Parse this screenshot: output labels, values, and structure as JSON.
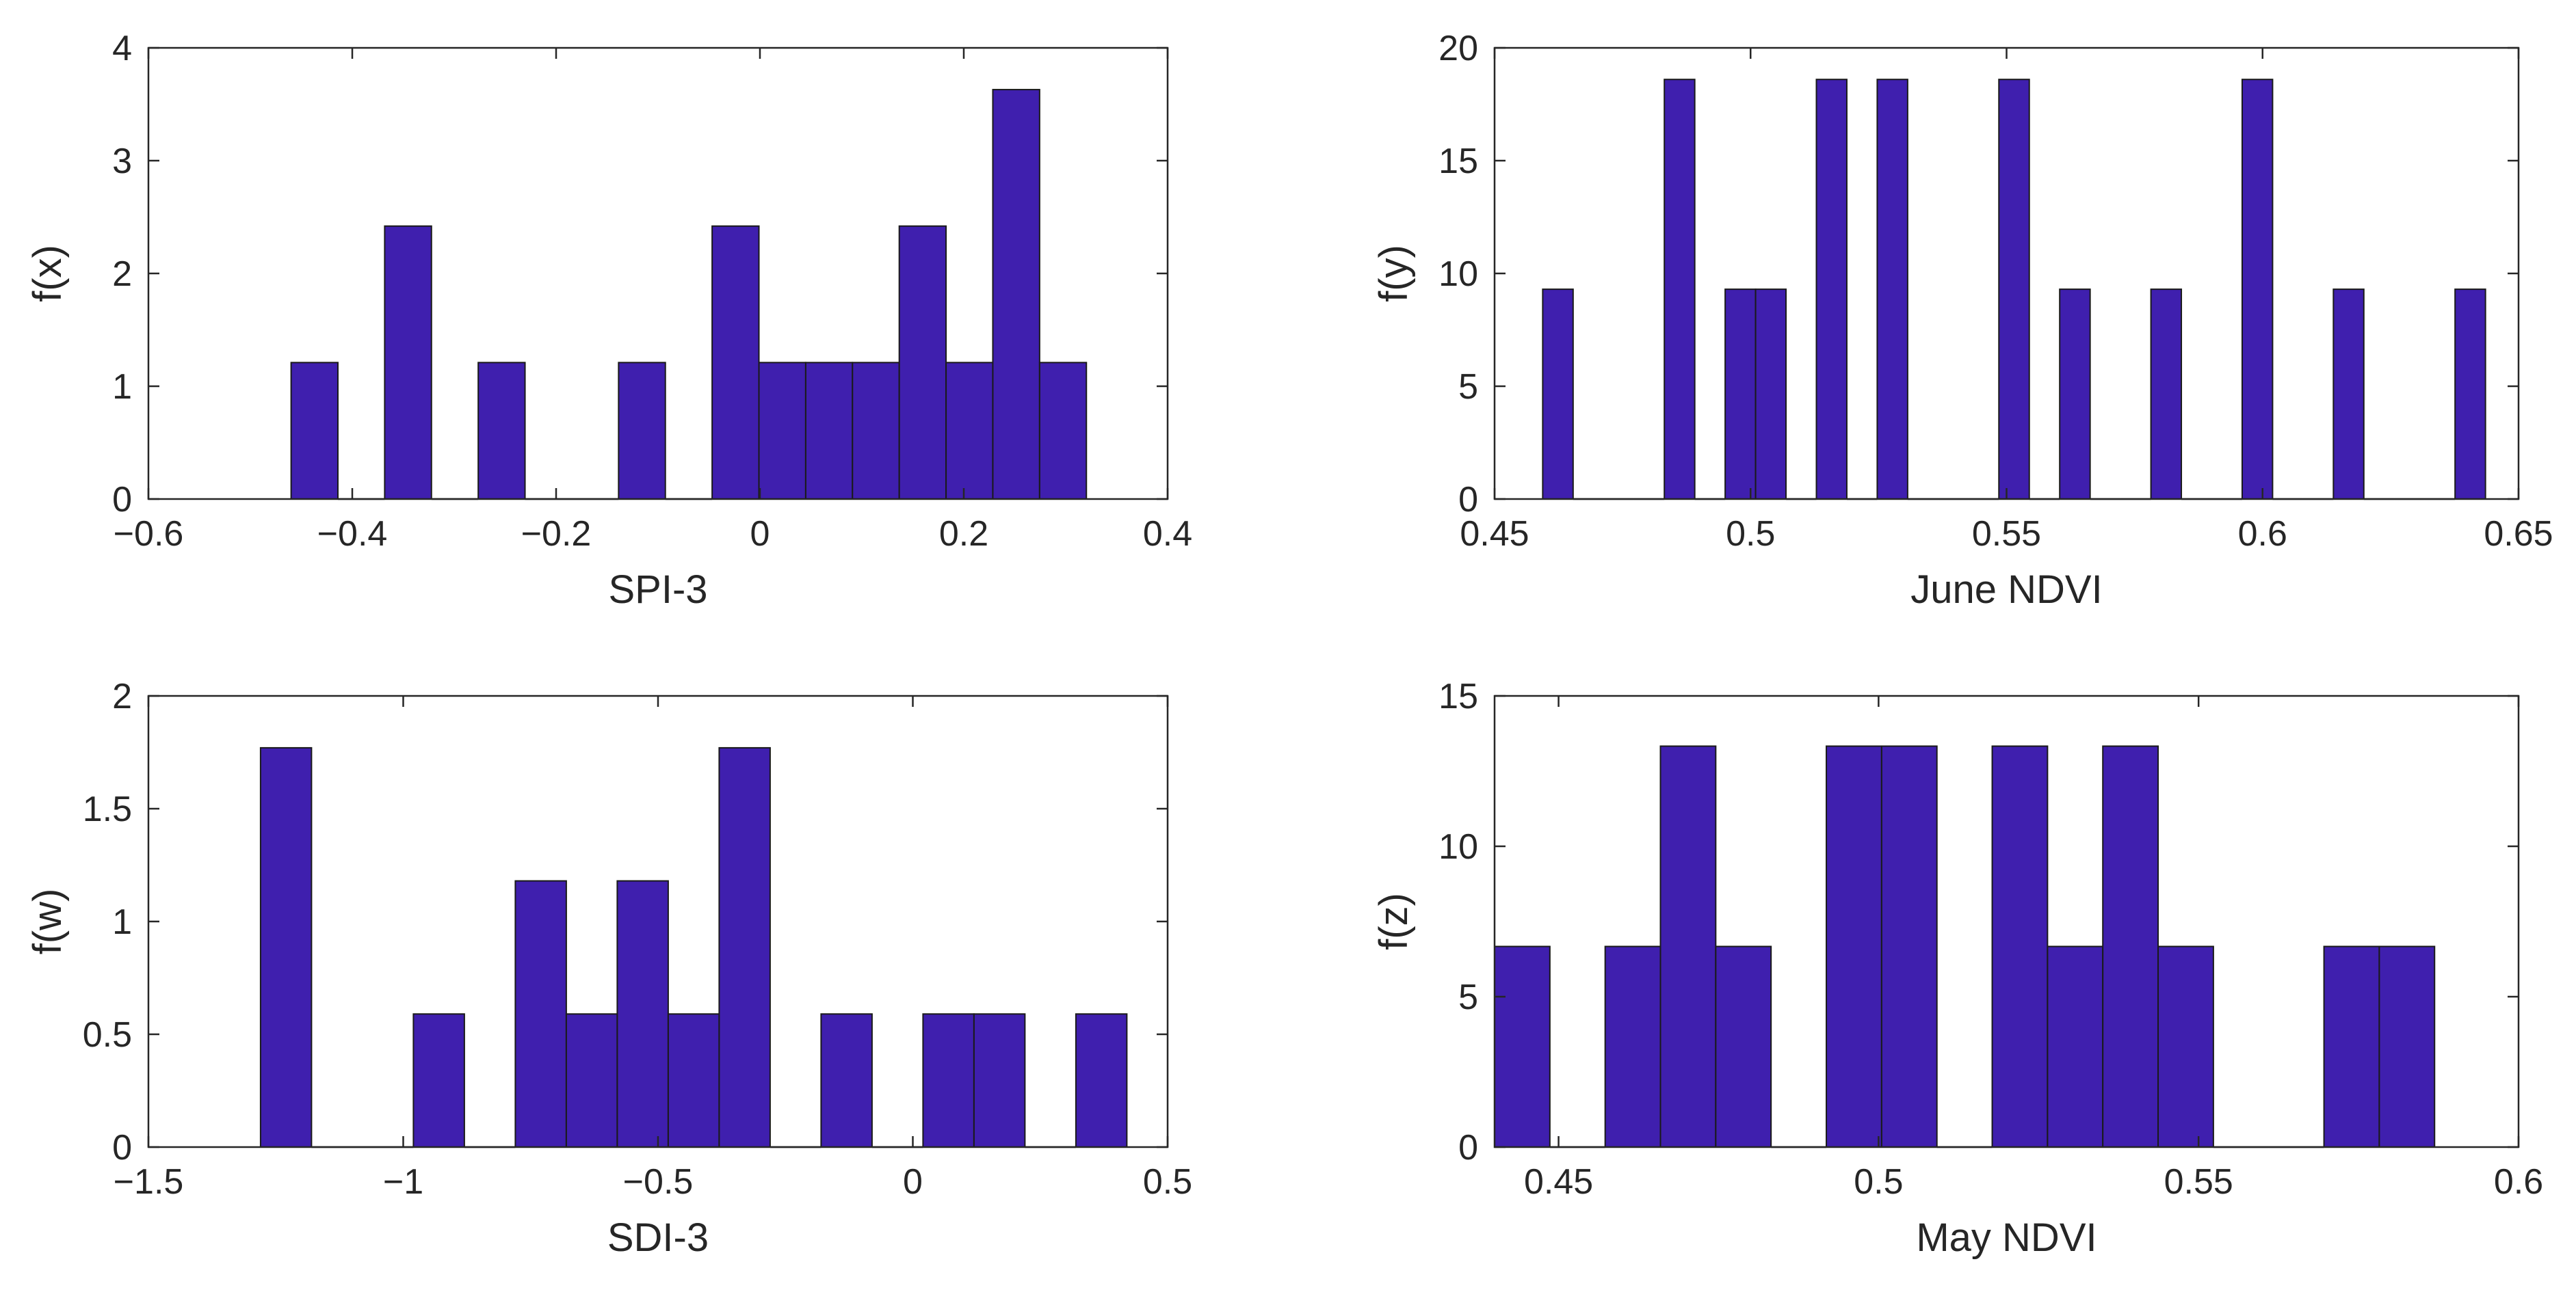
{
  "colors": {
    "bar_fill": "#3f1fae",
    "axis": "#262626"
  },
  "chart_data": [
    {
      "id": "spi3",
      "type": "bar",
      "xlabel": "SPI-3",
      "ylabel": "f(x)",
      "xlim": [
        -0.6,
        0.4
      ],
      "ylim": [
        0,
        4
      ],
      "xticks": [
        -0.6,
        -0.4,
        -0.2,
        0,
        0.2,
        0.4
      ],
      "xtick_labels": [
        "−0.6",
        "−0.4",
        "−0.2",
        "0",
        "0.2",
        "0.4"
      ],
      "yticks": [
        0,
        1,
        2,
        3,
        4
      ],
      "ytick_labels": [
        "0",
        "1",
        "2",
        "3",
        "4"
      ],
      "bin_start": -0.46,
      "bin_width": 0.0459,
      "values": [
        1.21,
        0,
        2.42,
        0,
        1.21,
        0,
        0,
        1.21,
        0,
        2.42,
        1.21,
        1.21,
        1.21,
        2.42,
        1.21,
        3.63,
        1.21
      ]
    },
    {
      "id": "june_ndvi",
      "type": "bar",
      "xlabel": "June NDVI",
      "ylabel": "f(y)",
      "xlim": [
        0.45,
        0.65
      ],
      "ylim": [
        0,
        20
      ],
      "xticks": [
        0.45,
        0.5,
        0.55,
        0.6,
        0.65
      ],
      "xtick_labels": [
        "0.45",
        "0.5",
        "0.55",
        "0.6",
        "0.65"
      ],
      "yticks": [
        0,
        5,
        10,
        15,
        20
      ],
      "ytick_labels": [
        "0",
        "5",
        "10",
        "15",
        "20"
      ],
      "bin_start": 0.4594,
      "bin_width": 0.00594,
      "values": [
        9.3,
        0,
        0,
        0,
        18.6,
        0,
        9.3,
        9.3,
        0,
        18.6,
        0,
        18.6,
        0,
        0,
        0,
        18.6,
        0,
        9.3,
        0,
        0,
        9.3,
        0,
        0,
        18.6,
        0,
        0,
        9.3,
        0,
        0,
        0,
        9.3
      ]
    },
    {
      "id": "sdi3",
      "type": "bar",
      "xlabel": "SDI-3",
      "ylabel": "f(w)",
      "xlim": [
        -1.5,
        0.5
      ],
      "ylim": [
        0,
        2
      ],
      "xticks": [
        -1.5,
        -1,
        -0.5,
        0,
        0.5
      ],
      "xtick_labels": [
        "−1.5",
        "−1",
        "−0.5",
        "0",
        "0.5"
      ],
      "yticks": [
        0,
        0.5,
        1,
        1.5,
        2
      ],
      "ytick_labels": [
        "0",
        "0.5",
        "1",
        "1.5",
        "2"
      ],
      "bin_start": -1.28,
      "bin_width": 0.1,
      "values": [
        1.77,
        0,
        0,
        0.59,
        0,
        1.18,
        0.59,
        1.18,
        0.59,
        1.77,
        0,
        0.59,
        0,
        0.59,
        0.59,
        0,
        0.59
      ]
    },
    {
      "id": "may_ndvi",
      "type": "bar",
      "xlabel": "May NDVI",
      "ylabel": "f(z)",
      "xlim": [
        0.44,
        0.6
      ],
      "ylim": [
        0,
        15
      ],
      "xticks": [
        0.45,
        0.5,
        0.55,
        0.6
      ],
      "xtick_labels": [
        "0.45",
        "0.5",
        "0.55",
        "0.6"
      ],
      "yticks": [
        0,
        5,
        10,
        15
      ],
      "ytick_labels": [
        "0",
        "5",
        "10",
        "15"
      ],
      "bin_start": 0.44,
      "bin_width": 0.00864,
      "values": [
        6.67,
        0,
        6.67,
        13.33,
        6.67,
        0,
        13.33,
        13.33,
        0,
        13.33,
        6.67,
        13.33,
        6.67,
        0,
        0,
        6.67,
        6.67
      ]
    }
  ]
}
